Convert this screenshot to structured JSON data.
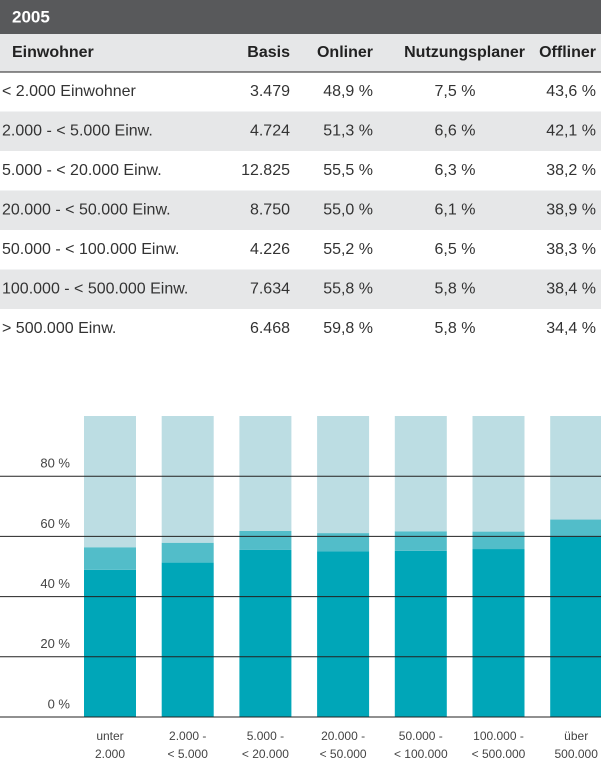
{
  "header": {
    "title": "2005"
  },
  "table": {
    "columns": [
      "Einwohner",
      "Basis",
      "Onliner",
      "Nutzungsplaner",
      "Offliner"
    ],
    "rows": [
      [
        "< 2.000 Einwohner",
        "3.479",
        "48,9 %",
        "7,5 %",
        "43,6 %"
      ],
      [
        "2.000 - < 5.000 Einw.",
        "4.724",
        "51,3 %",
        "6,6 %",
        "42,1 %"
      ],
      [
        "5.000 - < 20.000 Einw.",
        "12.825",
        "55,5 %",
        "6,3 %",
        "38,2 %"
      ],
      [
        "20.000 - < 50.000 Einw.",
        "8.750",
        "55,0 %",
        "6,1 %",
        "38,9 %"
      ],
      [
        "50.000 - < 100.000 Einw.",
        "4.226",
        "55,2 %",
        "6,5 %",
        "38,3 %"
      ],
      [
        "100.000 - < 500.000 Einw.",
        "7.634",
        "55,8 %",
        "5,8 %",
        "38,4 %"
      ],
      [
        "> 500.000 Einw.",
        "6.468",
        "59,8 %",
        "5,8 %",
        "34,4 %"
      ]
    ]
  },
  "chart_data": {
    "type": "stacked_bar",
    "categories": [
      [
        "unter",
        "2.000"
      ],
      [
        "2.000 -",
        "< 5.000"
      ],
      [
        "5.000 -",
        "< 20.000"
      ],
      [
        "20.000 -",
        "< 50.000"
      ],
      [
        "50.000 -",
        "< 100.000"
      ],
      [
        "100.000 -",
        "< 500.000"
      ],
      [
        "über",
        "500.000"
      ]
    ],
    "series": [
      {
        "name": "Onliner",
        "color": "#00a6b8",
        "values": [
          48.9,
          51.3,
          55.5,
          55.0,
          55.2,
          55.8,
          59.8
        ]
      },
      {
        "name": "Nutzungsplaner",
        "color": "#52bdc9",
        "values": [
          7.5,
          6.6,
          6.3,
          6.1,
          6.5,
          5.8,
          5.8
        ]
      },
      {
        "name": "Offliner",
        "color": "#bcdde3",
        "values": [
          43.6,
          42.1,
          38.2,
          38.9,
          38.3,
          38.4,
          34.4
        ]
      }
    ],
    "ylim": [
      0,
      100
    ],
    "yticks": [
      {
        "value": 0,
        "label": "0 %"
      },
      {
        "value": 20,
        "label": "20 %"
      },
      {
        "value": 40,
        "label": "40 %"
      },
      {
        "value": 60,
        "label": "60 %"
      },
      {
        "value": 80,
        "label": "80 %"
      }
    ],
    "grid": true
  }
}
